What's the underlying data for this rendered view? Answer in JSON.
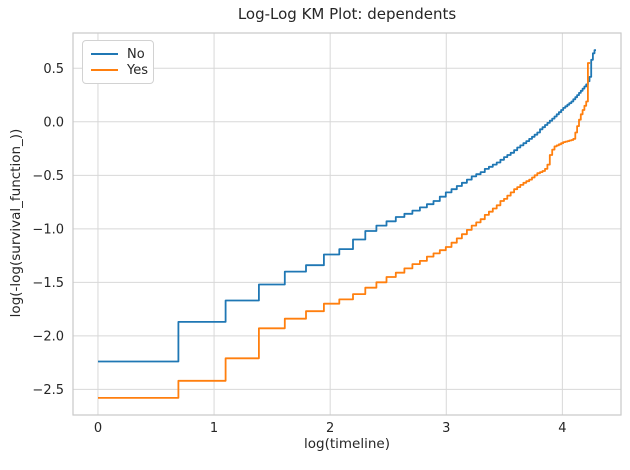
{
  "chart_data": {
    "type": "line",
    "subtype": "step-post",
    "title": "Log-Log KM Plot: dependents",
    "xlabel": "log(timeline)",
    "ylabel": "log(-log(survival_function_))",
    "xlim": [
      -0.215,
      4.505
    ],
    "ylim": [
      -2.74,
      0.83
    ],
    "xticks": [
      0,
      1,
      2,
      3,
      4
    ],
    "xtick_labels": [
      "0",
      "1",
      "2",
      "3",
      "4"
    ],
    "yticks": [
      0.5,
      0.0,
      -0.5,
      -1.0,
      -1.5,
      -2.0,
      -2.5
    ],
    "ytick_labels": [
      "0.5",
      "0.0",
      "−0.5",
      "−1.0",
      "−1.5",
      "−2.0",
      "−2.5"
    ],
    "grid": true,
    "legend_position": "upper left",
    "background": "#ffffff",
    "series": [
      {
        "name": "No",
        "color": "#1f77b4",
        "points": [
          [
            0.0,
            -2.24
          ],
          [
            0.693,
            -1.87
          ],
          [
            1.099,
            -1.67
          ],
          [
            1.386,
            -1.52
          ],
          [
            1.609,
            -1.4
          ],
          [
            1.792,
            -1.34
          ],
          [
            1.946,
            -1.24
          ],
          [
            2.079,
            -1.19
          ],
          [
            2.197,
            -1.1
          ],
          [
            2.303,
            -1.02
          ],
          [
            2.398,
            -0.97
          ],
          [
            2.485,
            -0.93
          ],
          [
            2.565,
            -0.89
          ],
          [
            2.639,
            -0.86
          ],
          [
            2.708,
            -0.83
          ],
          [
            2.773,
            -0.8
          ],
          [
            2.833,
            -0.77
          ],
          [
            2.89,
            -0.74
          ],
          [
            2.944,
            -0.7
          ],
          [
            2.996,
            -0.66
          ],
          [
            3.045,
            -0.63
          ],
          [
            3.091,
            -0.6
          ],
          [
            3.135,
            -0.57
          ],
          [
            3.178,
            -0.54
          ],
          [
            3.219,
            -0.51
          ],
          [
            3.258,
            -0.49
          ],
          [
            3.296,
            -0.47
          ],
          [
            3.332,
            -0.44
          ],
          [
            3.367,
            -0.42
          ],
          [
            3.401,
            -0.4
          ],
          [
            3.434,
            -0.38
          ],
          [
            3.466,
            -0.355
          ],
          [
            3.497,
            -0.33
          ],
          [
            3.526,
            -0.31
          ],
          [
            3.555,
            -0.29
          ],
          [
            3.584,
            -0.265
          ],
          [
            3.611,
            -0.24
          ],
          [
            3.638,
            -0.22
          ],
          [
            3.664,
            -0.2
          ],
          [
            3.689,
            -0.18
          ],
          [
            3.714,
            -0.16
          ],
          [
            3.738,
            -0.14
          ],
          [
            3.761,
            -0.12
          ],
          [
            3.784,
            -0.1
          ],
          [
            3.807,
            -0.07
          ],
          [
            3.829,
            -0.05
          ],
          [
            3.85,
            -0.03
          ],
          [
            3.871,
            -0.01
          ],
          [
            3.892,
            0.01
          ],
          [
            3.912,
            0.03
          ],
          [
            3.932,
            0.05
          ],
          [
            3.951,
            0.07
          ],
          [
            3.97,
            0.09
          ],
          [
            3.989,
            0.11
          ],
          [
            4.007,
            0.13
          ],
          [
            4.025,
            0.145
          ],
          [
            4.043,
            0.16
          ],
          [
            4.06,
            0.175
          ],
          [
            4.078,
            0.19
          ],
          [
            4.094,
            0.21
          ],
          [
            4.111,
            0.23
          ],
          [
            4.127,
            0.25
          ],
          [
            4.143,
            0.27
          ],
          [
            4.159,
            0.29
          ],
          [
            4.174,
            0.31
          ],
          [
            4.19,
            0.33
          ],
          [
            4.205,
            0.35
          ],
          [
            4.22,
            0.38
          ],
          [
            4.234,
            0.42
          ],
          [
            4.248,
            0.58
          ],
          [
            4.263,
            0.64
          ],
          [
            4.277,
            0.67
          ],
          [
            4.29,
            0.67
          ]
        ]
      },
      {
        "name": "Yes",
        "color": "#ff7f0e",
        "points": [
          [
            0.0,
            -2.58
          ],
          [
            0.693,
            -2.42
          ],
          [
            1.099,
            -2.21
          ],
          [
            1.386,
            -1.93
          ],
          [
            1.609,
            -1.84
          ],
          [
            1.792,
            -1.77
          ],
          [
            1.946,
            -1.7
          ],
          [
            2.079,
            -1.66
          ],
          [
            2.197,
            -1.61
          ],
          [
            2.303,
            -1.55
          ],
          [
            2.398,
            -1.5
          ],
          [
            2.485,
            -1.45
          ],
          [
            2.565,
            -1.41
          ],
          [
            2.639,
            -1.37
          ],
          [
            2.708,
            -1.33
          ],
          [
            2.773,
            -1.3
          ],
          [
            2.833,
            -1.26
          ],
          [
            2.89,
            -1.23
          ],
          [
            2.944,
            -1.2
          ],
          [
            2.996,
            -1.17
          ],
          [
            3.045,
            -1.13
          ],
          [
            3.091,
            -1.09
          ],
          [
            3.135,
            -1.05
          ],
          [
            3.178,
            -1.01
          ],
          [
            3.219,
            -0.97
          ],
          [
            3.258,
            -0.94
          ],
          [
            3.296,
            -0.91
          ],
          [
            3.332,
            -0.87
          ],
          [
            3.367,
            -0.84
          ],
          [
            3.401,
            -0.81
          ],
          [
            3.434,
            -0.78
          ],
          [
            3.466,
            -0.74
          ],
          [
            3.497,
            -0.72
          ],
          [
            3.526,
            -0.69
          ],
          [
            3.555,
            -0.66
          ],
          [
            3.584,
            -0.63
          ],
          [
            3.611,
            -0.61
          ],
          [
            3.638,
            -0.59
          ],
          [
            3.664,
            -0.57
          ],
          [
            3.689,
            -0.555
          ],
          [
            3.714,
            -0.54
          ],
          [
            3.738,
            -0.52
          ],
          [
            3.761,
            -0.5
          ],
          [
            3.784,
            -0.48
          ],
          [
            3.807,
            -0.47
          ],
          [
            3.829,
            -0.46
          ],
          [
            3.85,
            -0.44
          ],
          [
            3.871,
            -0.4
          ],
          [
            3.892,
            -0.31
          ],
          [
            3.912,
            -0.26
          ],
          [
            3.932,
            -0.23
          ],
          [
            3.951,
            -0.22
          ],
          [
            3.97,
            -0.21
          ],
          [
            3.989,
            -0.2
          ],
          [
            4.007,
            -0.19
          ],
          [
            4.025,
            -0.185
          ],
          [
            4.043,
            -0.18
          ],
          [
            4.06,
            -0.175
          ],
          [
            4.078,
            -0.17
          ],
          [
            4.094,
            -0.16
          ],
          [
            4.111,
            -0.1
          ],
          [
            4.127,
            -0.04
          ],
          [
            4.143,
            0.02
          ],
          [
            4.159,
            0.07
          ],
          [
            4.174,
            0.11
          ],
          [
            4.19,
            0.15
          ],
          [
            4.205,
            0.19
          ],
          [
            4.22,
            0.55
          ],
          [
            4.24,
            0.55
          ]
        ]
      }
    ]
  }
}
